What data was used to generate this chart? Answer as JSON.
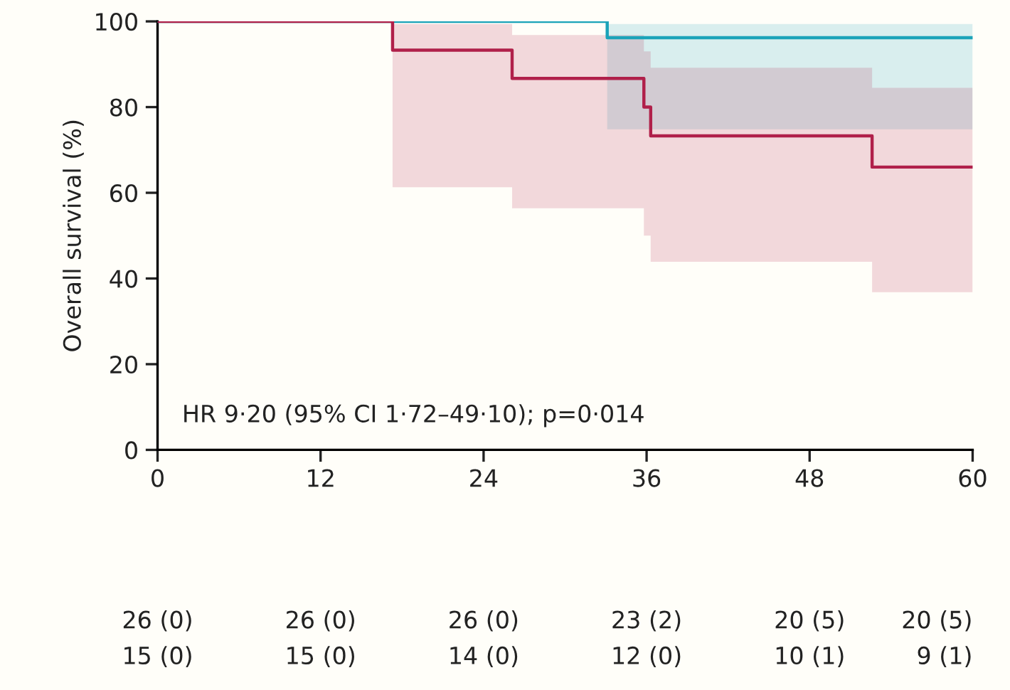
{
  "chart_data": {
    "type": "step",
    "ylabel": "Overall survival (%)",
    "xlim": [
      0,
      60
    ],
    "xticks": [
      0,
      12,
      24,
      36,
      48,
      60
    ],
    "ylim": [
      0,
      100
    ],
    "yticks": [
      0,
      20,
      40,
      60,
      80,
      100
    ],
    "grid": false,
    "marker": "none",
    "line_style": "solid",
    "series": [
      {
        "color": "#1ba3b9",
        "x": [
          0,
          33.1,
          60
        ],
        "values": [
          100,
          96.2,
          96.2
        ],
        "lower": [
          null,
          74.8,
          74.8
        ],
        "upper": [
          null,
          99.4,
          99.4
        ]
      },
      {
        "color": "#b0204a",
        "x": [
          0,
          17.3,
          26.1,
          35.8,
          36.3,
          52.6,
          60
        ],
        "values": [
          100,
          93.3,
          86.7,
          80,
          73.3,
          66,
          66
        ],
        "lower": [
          null,
          61.3,
          56.4,
          50,
          43.9,
          36.8,
          36.8
        ],
        "upper": [
          null,
          99.4,
          96.8,
          93,
          89.2,
          84.5,
          84.5
        ]
      }
    ],
    "annotations": [
      "HR 9·20 (95% CI 1·72–49·10); p=0·014",
      "26 (0)",
      "26 (0)",
      "26 (0)",
      "23 (2)",
      "20 (5)",
      "20 (5)",
      "15 (0)",
      "15 (0)",
      "14 (0)",
      "12 (0)",
      "10 (1)",
      "9 (1)"
    ]
  }
}
